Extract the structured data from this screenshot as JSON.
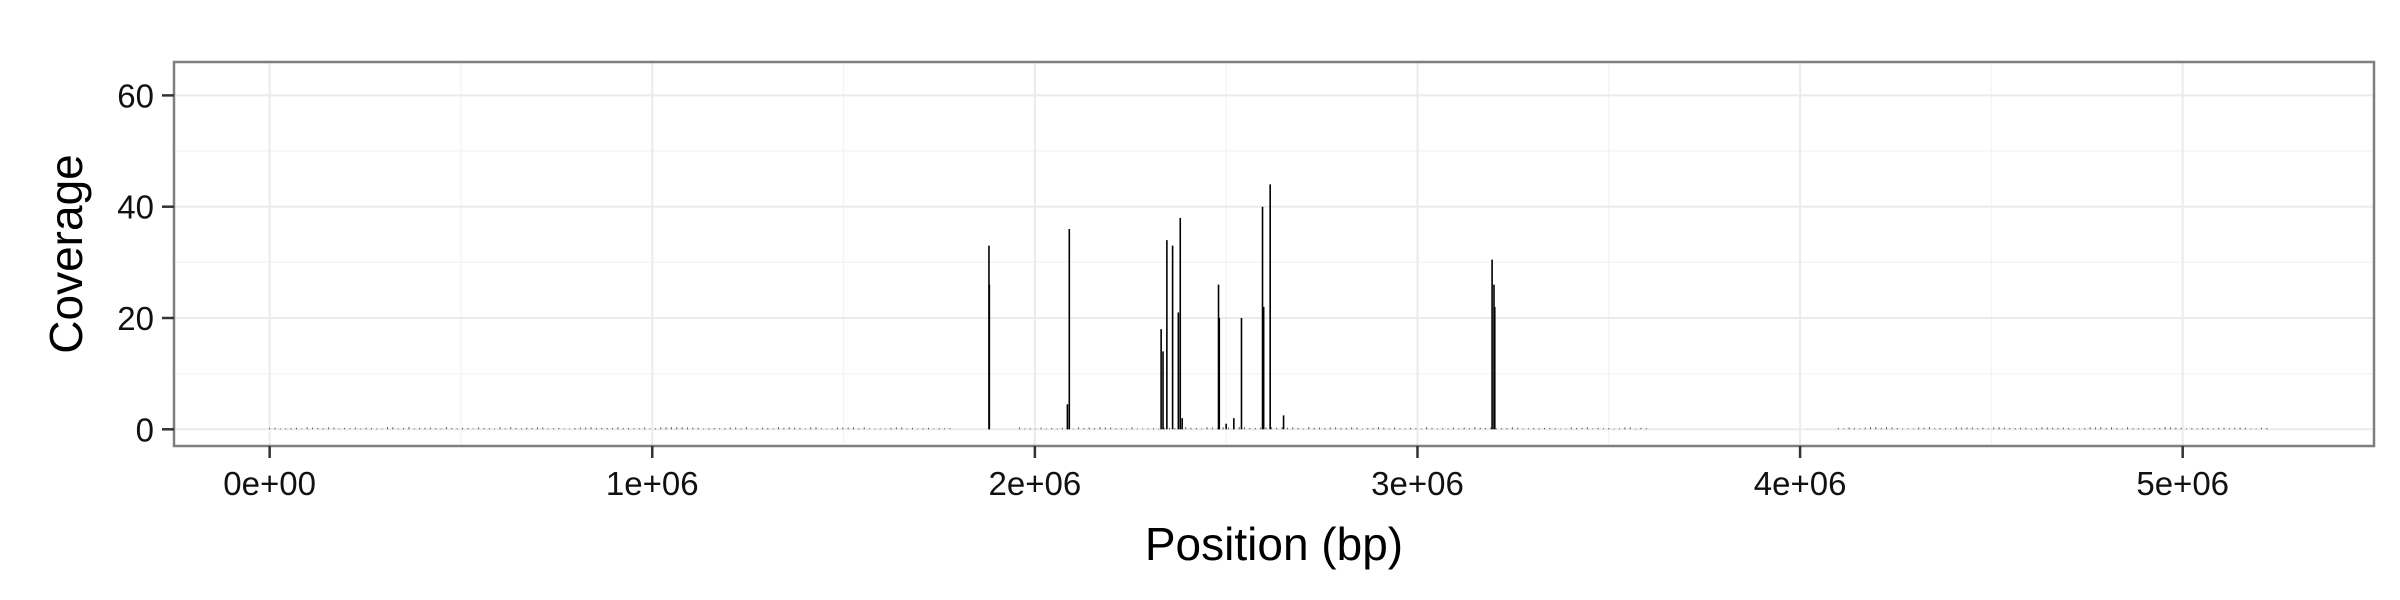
{
  "chart_data": {
    "type": "bar",
    "title": "",
    "xlabel": "Position (bp)",
    "ylabel": "Coverage",
    "xlim": [
      -250000,
      5500000
    ],
    "ylim": [
      -3,
      66
    ],
    "x_ticks": [
      0,
      1000000,
      2000000,
      3000000,
      4000000,
      5000000
    ],
    "x_tick_labels": [
      "0e+00",
      "1e+06",
      "2e+06",
      "3e+06",
      "4e+06",
      "5e+06"
    ],
    "y_ticks": [
      0,
      20,
      40,
      60
    ],
    "y_tick_labels": [
      "0",
      "20",
      "40",
      "60"
    ],
    "grid": true,
    "legend": "none",
    "bar_color": "#000000",
    "baseline_noise_max": 0.4,
    "baseline_noise_ranges": [
      [
        0,
        1780000
      ],
      [
        1960000,
        3600000
      ],
      [
        4100000,
        5230000
      ]
    ],
    "points": [
      {
        "x": 1880000,
        "y": 33
      },
      {
        "x": 1881000,
        "y": 26
      },
      {
        "x": 2090000,
        "y": 36
      },
      {
        "x": 2085000,
        "y": 4.5
      },
      {
        "x": 2330000,
        "y": 18
      },
      {
        "x": 2335000,
        "y": 14
      },
      {
        "x": 2345000,
        "y": 34
      },
      {
        "x": 2360000,
        "y": 33
      },
      {
        "x": 2375000,
        "y": 21
      },
      {
        "x": 2380000,
        "y": 38
      },
      {
        "x": 2385000,
        "y": 2
      },
      {
        "x": 2480000,
        "y": 26
      },
      {
        "x": 2482000,
        "y": 20
      },
      {
        "x": 2500000,
        "y": 1
      },
      {
        "x": 2520000,
        "y": 2
      },
      {
        "x": 2540000,
        "y": 20
      },
      {
        "x": 2595000,
        "y": 40
      },
      {
        "x": 2598000,
        "y": 22
      },
      {
        "x": 2615000,
        "y": 44
      },
      {
        "x": 2650000,
        "y": 2.5
      },
      {
        "x": 3195000,
        "y": 30.5
      },
      {
        "x": 3200000,
        "y": 26
      },
      {
        "x": 3202000,
        "y": 22
      }
    ]
  }
}
